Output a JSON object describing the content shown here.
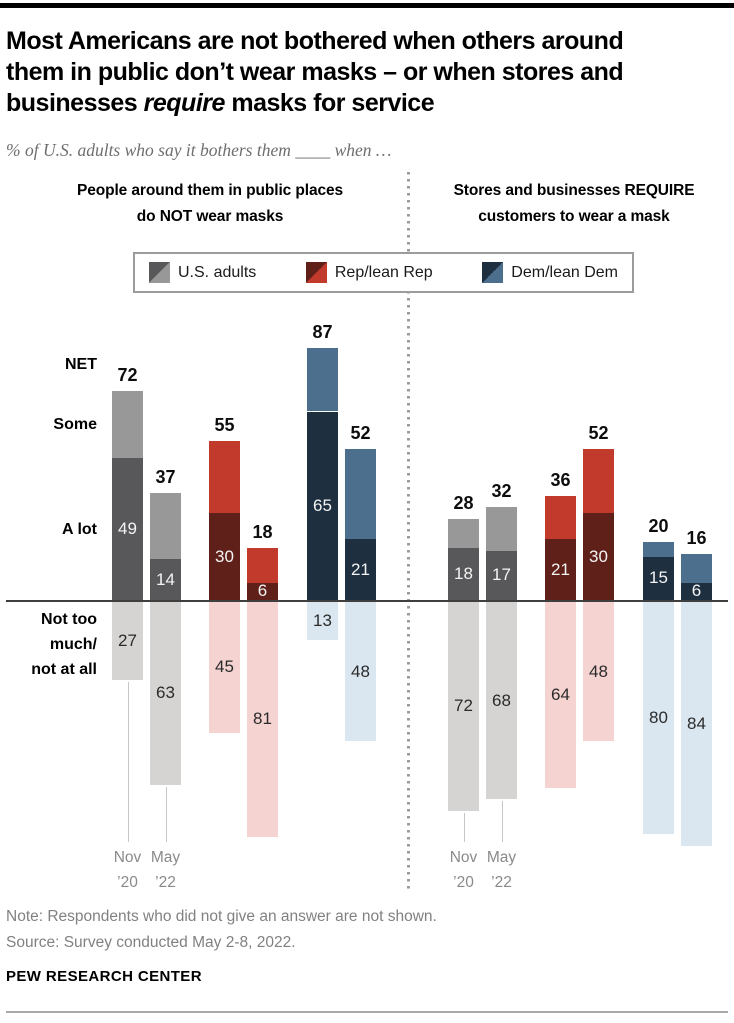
{
  "header": {
    "title_lines": [
      {
        "pre": "Most Americans are not bothered when others around",
        "italic": "",
        "post": ""
      },
      {
        "pre": "them in public don’t wear masks – or when stores and",
        "italic": "",
        "post": ""
      },
      {
        "pre": "businesses ",
        "italic": "require",
        "post": " masks for service"
      }
    ],
    "subtitle": "% of U.S. adults who say it bothers them ____ when …"
  },
  "legend": {
    "items": [
      {
        "label": "U.S. adults",
        "color_key": "us_adults"
      },
      {
        "label": "Rep/lean Rep",
        "color_key": "rep"
      },
      {
        "label": "Dem/lean Dem",
        "color_key": "dem"
      }
    ]
  },
  "axis_labels": {
    "net": "NET",
    "some": "Some",
    "a_lot": "A lot",
    "not_much_lines": [
      "Not too",
      "much/",
      "not at all"
    ]
  },
  "chart_data": {
    "type": "bar",
    "stacked": true,
    "orientation": "diverging-vertical",
    "unit": "% of U.S. adults",
    "segment_names": [
      "A lot",
      "Some",
      "Not too much/not at all"
    ],
    "axis": {
      "above_max": 100,
      "below_max": 100,
      "gridlines": false
    },
    "legend_position": "top",
    "x_tick_labels": [
      "Nov ’20",
      "May ’22"
    ],
    "colors": {
      "us_adults": {
        "a_lot": "#58585a",
        "some": "#989898",
        "not_much": "#d5d4d3"
      },
      "rep": {
        "a_lot": "#5e2019",
        "some": "#c23a2c",
        "not_much": "#f4d3d1"
      },
      "dem": {
        "a_lot": "#1e3040",
        "some": "#4d6f8e",
        "not_much": "#dbe7f0"
      }
    },
    "panels": [
      {
        "title": "People around them in public places do NOT wear masks",
        "groups": [
          {
            "name": "U.S. adults",
            "bars": [
              {
                "label": "Nov ’20",
                "net": 72,
                "a_lot": 49,
                "not_too_much": 27
              },
              {
                "label": "May ’22",
                "net": 37,
                "a_lot": 14,
                "not_too_much": 63
              }
            ]
          },
          {
            "name": "Rep/lean Rep",
            "bars": [
              {
                "label": "Nov ’20",
                "net": 55,
                "a_lot": 30,
                "not_too_much": 45
              },
              {
                "label": "May ’22",
                "net": 18,
                "a_lot": 6,
                "not_too_much": 81
              }
            ]
          },
          {
            "name": "Dem/lean Dem",
            "bars": [
              {
                "label": "Nov ’20",
                "net": 87,
                "a_lot": 65,
                "not_too_much": 13
              },
              {
                "label": "May ’22",
                "net": 52,
                "a_lot": 21,
                "not_too_much": 48
              }
            ]
          }
        ]
      },
      {
        "title": "Stores and businesses REQUIRE customers to wear a mask",
        "groups": [
          {
            "name": "U.S. adults",
            "bars": [
              {
                "label": "Nov ’20",
                "net": 28,
                "a_lot": 18,
                "not_too_much": 72
              },
              {
                "label": "May ’22",
                "net": 32,
                "a_lot": 17,
                "not_too_much": 68
              }
            ]
          },
          {
            "name": "Rep/lean Rep",
            "bars": [
              {
                "label": "Nov ’20",
                "net": 36,
                "a_lot": 21,
                "not_too_much": 64
              },
              {
                "label": "May ’22",
                "net": 52,
                "a_lot": 30,
                "not_too_much": 48
              }
            ]
          },
          {
            "name": "Dem/lean Dem",
            "bars": [
              {
                "label": "Nov ’20",
                "net": 20,
                "a_lot": 15,
                "not_too_much": 80
              },
              {
                "label": "May ’22",
                "net": 16,
                "a_lot": 6,
                "not_too_much": 84
              }
            ]
          }
        ]
      }
    ]
  },
  "footer": {
    "note": "Note: Respondents who did not give an answer are not shown.",
    "source": "Source: Survey conducted May 2-8, 2022.",
    "brand": "PEW RESEARCH CENTER"
  }
}
